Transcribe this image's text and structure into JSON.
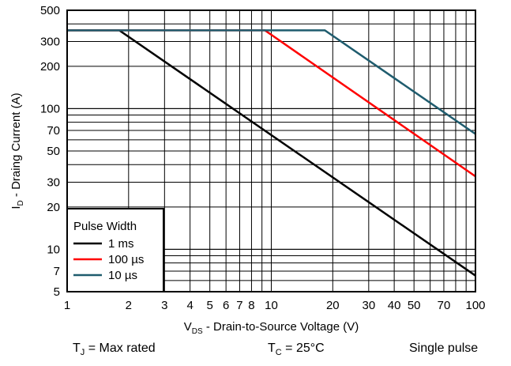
{
  "chart_data": {
    "type": "line",
    "x_scale": "log",
    "y_scale": "log",
    "xlim": [
      1,
      100
    ],
    "ylim": [
      5,
      500
    ],
    "grid": true,
    "legend_position": "bottom-left",
    "x_ticks": [
      1,
      2,
      3,
      4,
      5,
      6,
      7,
      8,
      10,
      20,
      30,
      40,
      50,
      70,
      100
    ],
    "x_tick_labels": [
      "1",
      "2",
      "3",
      "4",
      "5",
      "6",
      "7",
      "8",
      "10",
      "20",
      "30",
      "40",
      "50",
      "70",
      "100"
    ],
    "y_ticks": [
      5,
      7,
      10,
      20,
      30,
      50,
      70,
      100,
      200,
      300,
      500
    ],
    "y_tick_labels": [
      "5",
      "7",
      "10",
      "20",
      "30",
      "50",
      "70",
      "100",
      "200",
      "300",
      "500"
    ],
    "xlabel": {
      "main": "V",
      "sub": "DS",
      "rest": " - Drain-to-Source Voltage (V)"
    },
    "ylabel": {
      "main": "I",
      "sub": "D",
      "rest": " - Draing Current (A)"
    },
    "legend_title": "Pulse Width",
    "series": [
      {
        "name": "1 ms",
        "color": "#000000",
        "x": [
          1,
          1.8,
          100
        ],
        "y": [
          360,
          360,
          6.5
        ]
      },
      {
        "name": "100 µs",
        "color": "#ff0000",
        "x": [
          1,
          9.3,
          100
        ],
        "y": [
          360,
          360,
          33
        ]
      },
      {
        "name": "10 µs",
        "color": "#1f5c6e",
        "x": [
          1,
          18.3,
          100
        ],
        "y": [
          360,
          360,
          66
        ]
      }
    ]
  },
  "footer": {
    "tj": {
      "main": "T",
      "sub": "J",
      "rest": " = Max rated"
    },
    "tc": {
      "main": "T",
      "sub": "C",
      "rest": " = 25°C"
    },
    "pulse": "Single pulse"
  }
}
